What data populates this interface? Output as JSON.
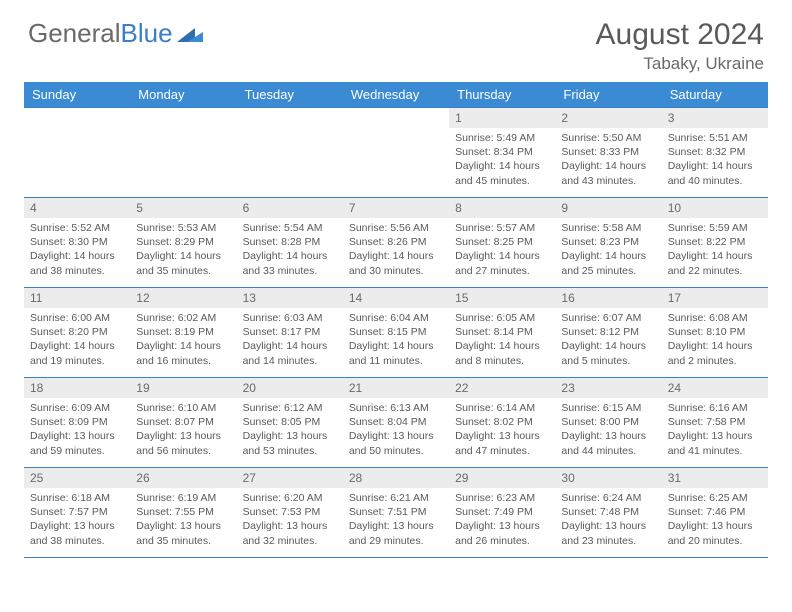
{
  "logo": {
    "part1": "General",
    "part2": "Blue"
  },
  "title": "August 2024",
  "subtitle": "Tabaky, Ukraine",
  "colors": {
    "header_bg": "#3b8bd4",
    "border": "#3b7fc4",
    "daynum_bg": "#ececec",
    "text": "#5a5a5a"
  },
  "weekdays": [
    "Sunday",
    "Monday",
    "Tuesday",
    "Wednesday",
    "Thursday",
    "Friday",
    "Saturday"
  ],
  "weeks": [
    [
      null,
      null,
      null,
      null,
      {
        "n": "1",
        "sr": "5:49 AM",
        "ss": "8:34 PM",
        "dl": "14 hours and 45 minutes."
      },
      {
        "n": "2",
        "sr": "5:50 AM",
        "ss": "8:33 PM",
        "dl": "14 hours and 43 minutes."
      },
      {
        "n": "3",
        "sr": "5:51 AM",
        "ss": "8:32 PM",
        "dl": "14 hours and 40 minutes."
      }
    ],
    [
      {
        "n": "4",
        "sr": "5:52 AM",
        "ss": "8:30 PM",
        "dl": "14 hours and 38 minutes."
      },
      {
        "n": "5",
        "sr": "5:53 AM",
        "ss": "8:29 PM",
        "dl": "14 hours and 35 minutes."
      },
      {
        "n": "6",
        "sr": "5:54 AM",
        "ss": "8:28 PM",
        "dl": "14 hours and 33 minutes."
      },
      {
        "n": "7",
        "sr": "5:56 AM",
        "ss": "8:26 PM",
        "dl": "14 hours and 30 minutes."
      },
      {
        "n": "8",
        "sr": "5:57 AM",
        "ss": "8:25 PM",
        "dl": "14 hours and 27 minutes."
      },
      {
        "n": "9",
        "sr": "5:58 AM",
        "ss": "8:23 PM",
        "dl": "14 hours and 25 minutes."
      },
      {
        "n": "10",
        "sr": "5:59 AM",
        "ss": "8:22 PM",
        "dl": "14 hours and 22 minutes."
      }
    ],
    [
      {
        "n": "11",
        "sr": "6:00 AM",
        "ss": "8:20 PM",
        "dl": "14 hours and 19 minutes."
      },
      {
        "n": "12",
        "sr": "6:02 AM",
        "ss": "8:19 PM",
        "dl": "14 hours and 16 minutes."
      },
      {
        "n": "13",
        "sr": "6:03 AM",
        "ss": "8:17 PM",
        "dl": "14 hours and 14 minutes."
      },
      {
        "n": "14",
        "sr": "6:04 AM",
        "ss": "8:15 PM",
        "dl": "14 hours and 11 minutes."
      },
      {
        "n": "15",
        "sr": "6:05 AM",
        "ss": "8:14 PM",
        "dl": "14 hours and 8 minutes."
      },
      {
        "n": "16",
        "sr": "6:07 AM",
        "ss": "8:12 PM",
        "dl": "14 hours and 5 minutes."
      },
      {
        "n": "17",
        "sr": "6:08 AM",
        "ss": "8:10 PM",
        "dl": "14 hours and 2 minutes."
      }
    ],
    [
      {
        "n": "18",
        "sr": "6:09 AM",
        "ss": "8:09 PM",
        "dl": "13 hours and 59 minutes."
      },
      {
        "n": "19",
        "sr": "6:10 AM",
        "ss": "8:07 PM",
        "dl": "13 hours and 56 minutes."
      },
      {
        "n": "20",
        "sr": "6:12 AM",
        "ss": "8:05 PM",
        "dl": "13 hours and 53 minutes."
      },
      {
        "n": "21",
        "sr": "6:13 AM",
        "ss": "8:04 PM",
        "dl": "13 hours and 50 minutes."
      },
      {
        "n": "22",
        "sr": "6:14 AM",
        "ss": "8:02 PM",
        "dl": "13 hours and 47 minutes."
      },
      {
        "n": "23",
        "sr": "6:15 AM",
        "ss": "8:00 PM",
        "dl": "13 hours and 44 minutes."
      },
      {
        "n": "24",
        "sr": "6:16 AM",
        "ss": "7:58 PM",
        "dl": "13 hours and 41 minutes."
      }
    ],
    [
      {
        "n": "25",
        "sr": "6:18 AM",
        "ss": "7:57 PM",
        "dl": "13 hours and 38 minutes."
      },
      {
        "n": "26",
        "sr": "6:19 AM",
        "ss": "7:55 PM",
        "dl": "13 hours and 35 minutes."
      },
      {
        "n": "27",
        "sr": "6:20 AM",
        "ss": "7:53 PM",
        "dl": "13 hours and 32 minutes."
      },
      {
        "n": "28",
        "sr": "6:21 AM",
        "ss": "7:51 PM",
        "dl": "13 hours and 29 minutes."
      },
      {
        "n": "29",
        "sr": "6:23 AM",
        "ss": "7:49 PM",
        "dl": "13 hours and 26 minutes."
      },
      {
        "n": "30",
        "sr": "6:24 AM",
        "ss": "7:48 PM",
        "dl": "13 hours and 23 minutes."
      },
      {
        "n": "31",
        "sr": "6:25 AM",
        "ss": "7:46 PM",
        "dl": "13 hours and 20 minutes."
      }
    ]
  ],
  "labels": {
    "sunrise": "Sunrise:",
    "sunset": "Sunset:",
    "daylight": "Daylight:"
  }
}
